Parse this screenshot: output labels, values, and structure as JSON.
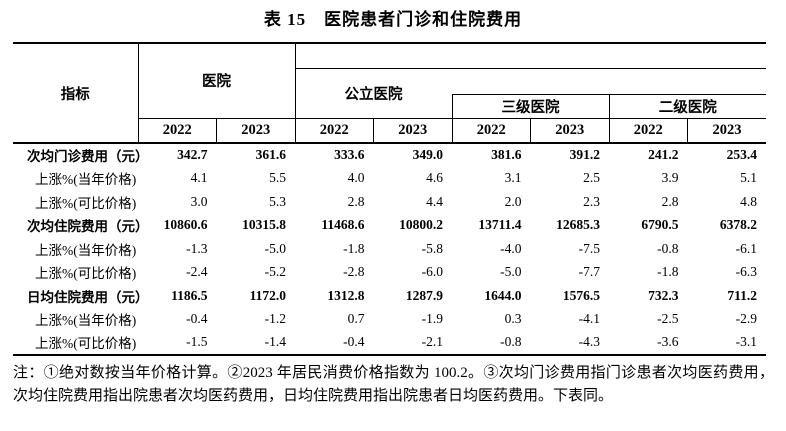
{
  "title": "表 15　医院患者门诊和住院费用",
  "table": {
    "indicator_header": "指标",
    "group_hospital": "医院",
    "group_public": "公立医院",
    "group_level3": "三级医院",
    "group_level2": "二级医院",
    "years": [
      "2022",
      "2023",
      "2022",
      "2023",
      "2022",
      "2023",
      "2022",
      "2023"
    ],
    "rows": [
      {
        "label": "次均门诊费用（元）",
        "bold": true,
        "indent": false,
        "values": [
          "342.7",
          "361.6",
          "333.6",
          "349.0",
          "381.6",
          "391.2",
          "241.2",
          "253.4"
        ]
      },
      {
        "label": "上涨%(当年价格)",
        "bold": false,
        "indent": true,
        "values": [
          "4.1",
          "5.5",
          "4.0",
          "4.6",
          "3.1",
          "2.5",
          "3.9",
          "5.1"
        ]
      },
      {
        "label": "上涨%(可比价格)",
        "bold": false,
        "indent": true,
        "values": [
          "3.0",
          "5.3",
          "2.8",
          "4.4",
          "2.0",
          "2.3",
          "2.8",
          "4.8"
        ]
      },
      {
        "label": "次均住院费用（元）",
        "bold": true,
        "indent": false,
        "values": [
          "10860.6",
          "10315.8",
          "11468.6",
          "10800.2",
          "13711.4",
          "12685.3",
          "6790.5",
          "6378.2"
        ]
      },
      {
        "label": "上涨%(当年价格)",
        "bold": false,
        "indent": true,
        "values": [
          "-1.3",
          "-5.0",
          "-1.8",
          "-5.8",
          "-4.0",
          "-7.5",
          "-0.8",
          "-6.1"
        ]
      },
      {
        "label": "上涨%(可比价格)",
        "bold": false,
        "indent": true,
        "values": [
          "-2.4",
          "-5.2",
          "-2.8",
          "-6.0",
          "-5.0",
          "-7.7",
          "-1.8",
          "-6.3"
        ]
      },
      {
        "label": "日均住院费用（元）",
        "bold": true,
        "indent": false,
        "values": [
          "1186.5",
          "1172.0",
          "1312.8",
          "1287.9",
          "1644.0",
          "1576.5",
          "732.3",
          "711.2"
        ]
      },
      {
        "label": "上涨%(当年价格)",
        "bold": false,
        "indent": true,
        "values": [
          "-0.4",
          "-1.2",
          "0.7",
          "-1.9",
          "0.3",
          "-4.1",
          "-2.5",
          "-2.9"
        ]
      },
      {
        "label": "上涨%(可比价格)",
        "bold": false,
        "indent": true,
        "values": [
          "-1.5",
          "-1.4",
          "-0.4",
          "-2.1",
          "-0.8",
          "-4.3",
          "-3.6",
          "-3.1"
        ]
      }
    ]
  },
  "note": "注：①绝对数按当年价格计算。②2023 年居民消费价格指数为 100.2。③次均门诊费用指门诊患者次均医药费用，次均住院费用指出院患者次均医药费用，日均住院费用指出院患者日均医药费用。下表同。"
}
